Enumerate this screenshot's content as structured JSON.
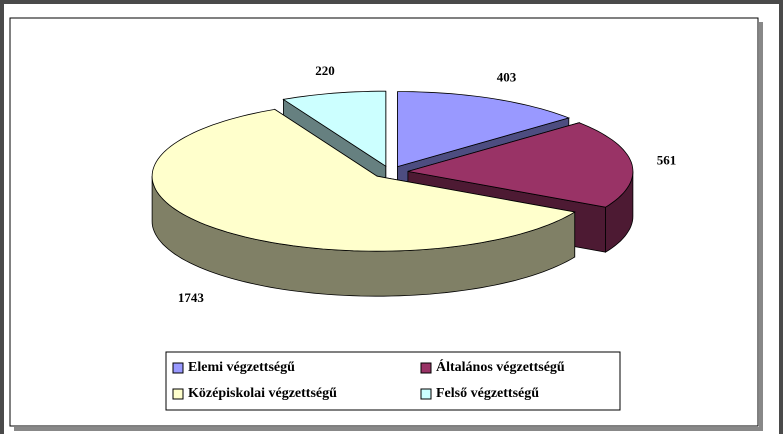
{
  "chart_data": {
    "type": "pie",
    "categories": [
      "Elemi végzettségű",
      "Általános végzettségű",
      "Középiskolai végzettségű",
      "Felső végzettségű"
    ],
    "values": [
      403,
      561,
      1743,
      220
    ],
    "colors": [
      "#9999ff",
      "#993366",
      "#ffffcc",
      "#ccffff"
    ],
    "legend": "bottom"
  }
}
